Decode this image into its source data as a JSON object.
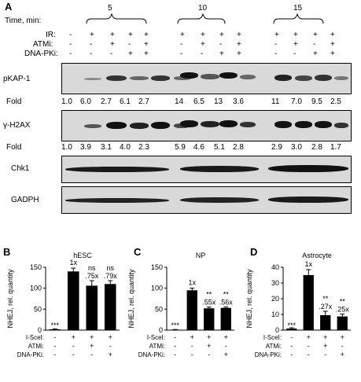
{
  "panelA": {
    "label": "A",
    "time_label": "Time, min:",
    "groups": [
      "5",
      "10",
      "15"
    ],
    "rows": [
      {
        "label": "IR:",
        "g0": [
          "-",
          "+",
          "+",
          "+",
          "+"
        ],
        "g1": [
          "+",
          "+",
          "+",
          "+"
        ],
        "g2": [
          "+",
          "+",
          "+",
          "+"
        ]
      },
      {
        "label": "ATMi:",
        "g0": [
          "-",
          "-",
          "+",
          "-",
          "+"
        ],
        "g1": [
          "-",
          "+",
          "-",
          "+"
        ],
        "g2": [
          "-",
          "+",
          "-",
          "+"
        ]
      },
      {
        "label": "DNA-PKi:",
        "g0": [
          "-",
          "-",
          "-",
          "+",
          "+"
        ],
        "g1": [
          "-",
          "-",
          "+",
          "+"
        ],
        "g2": [
          "-",
          "-",
          "+",
          "+"
        ]
      }
    ],
    "blots": [
      {
        "label": "pKAP-1",
        "fold_label": "Fold",
        "fold": [
          "1.0",
          "6.0",
          "2.7",
          "6.1",
          "2.7",
          "14",
          "6.5",
          "13",
          "3.6",
          "11",
          "7.0",
          "9.5",
          "2.5"
        ]
      },
      {
        "label": "γ-H2AX",
        "fold_label": "Fold",
        "fold": [
          "1.0",
          "3.9",
          "3.1",
          "4.0",
          "2.3",
          "5.9",
          "4.6",
          "5.1",
          "2.8",
          "2.9",
          "3.0",
          "2.8",
          "1.7"
        ]
      },
      {
        "label": "Chk1"
      },
      {
        "label": "GADPH"
      }
    ]
  },
  "bar_panels": [
    {
      "label": "B",
      "chart_data": {
        "type": "bar",
        "title": "hESC",
        "ylabel": "NHEJ, rel. quantity",
        "ylim": [
          0,
          150
        ],
        "yticks": [
          "0",
          "50",
          "100",
          "150"
        ],
        "values": [
          2,
          140,
          106,
          110
        ],
        "errors": [
          1,
          8,
          12,
          8
        ],
        "annotations": [
          "***",
          "1x",
          ".75x",
          ".79x"
        ],
        "sig": [
          "",
          "",
          "ns",
          "ns"
        ],
        "conditions": [
          {
            "label": "I-SceI:",
            "marks": [
              "-",
              "+",
              "+",
              "+"
            ]
          },
          {
            "label": "ATMi:",
            "marks": [
              "-",
              "-",
              "+",
              "-"
            ]
          },
          {
            "label": "DNA-PKi:",
            "marks": [
              "-",
              "-",
              "-",
              "+"
            ]
          }
        ]
      }
    },
    {
      "label": "C",
      "chart_data": {
        "type": "bar",
        "title": "NP",
        "ylabel": "NHEJ, rel. quantity",
        "ylim": [
          0,
          150
        ],
        "yticks": [
          "0",
          "50",
          "100",
          "150"
        ],
        "values": [
          1,
          95,
          52,
          53
        ],
        "errors": [
          0.5,
          5,
          3,
          2
        ],
        "annotations": [
          "***",
          "1x",
          ".55x",
          ".56x"
        ],
        "sig": [
          "",
          "",
          "**",
          "**"
        ],
        "conditions": [
          {
            "label": "I-SceI:",
            "marks": [
              "-",
              "+",
              "+",
              "+"
            ]
          },
          {
            "label": "ATMi:",
            "marks": [
              "-",
              "-",
              "+",
              "-"
            ]
          },
          {
            "label": "DNA-PKi:",
            "marks": [
              "-",
              "-",
              "-",
              "+"
            ]
          }
        ]
      }
    },
    {
      "label": "D",
      "chart_data": {
        "type": "bar",
        "title": "Astrocyte",
        "ylabel": "NHEJ, rel. quantity",
        "ylim": [
          0,
          40
        ],
        "yticks": [
          "0",
          "10",
          "20",
          "30",
          "40"
        ],
        "values": [
          1,
          35,
          9.5,
          8.7
        ],
        "errors": [
          0.5,
          3.5,
          2.5,
          1.5
        ],
        "annotations": [
          "***",
          "1x",
          ".27x",
          ".25x"
        ],
        "sig": [
          "",
          "",
          "**",
          "**"
        ],
        "conditions": [
          {
            "label": "I-SceI:",
            "marks": [
              "-",
              "+",
              "+",
              "+"
            ]
          },
          {
            "label": "ATMi:",
            "marks": [
              "-",
              "-",
              "+",
              "-"
            ]
          },
          {
            "label": "DNA-PKi:",
            "marks": [
              "-",
              "-",
              "-",
              "+"
            ]
          }
        ]
      }
    }
  ]
}
